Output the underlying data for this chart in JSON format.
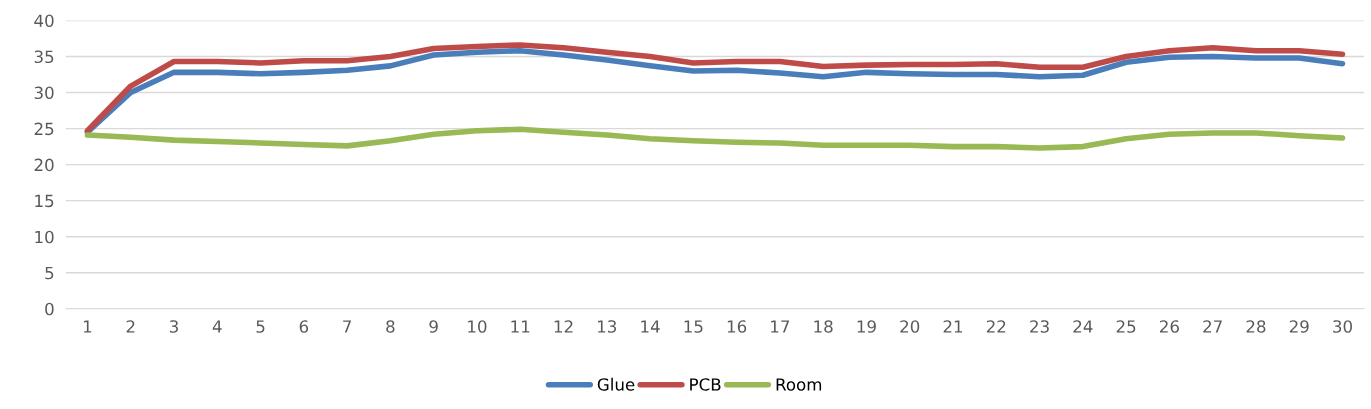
{
  "chart_data": {
    "type": "line",
    "categories": [
      "1",
      "2",
      "3",
      "4",
      "5",
      "6",
      "7",
      "8",
      "9",
      "10",
      "11",
      "12",
      "13",
      "14",
      "15",
      "16",
      "17",
      "18",
      "19",
      "20",
      "21",
      "22",
      "23",
      "24",
      "25",
      "26",
      "27",
      "28",
      "29",
      "30"
    ],
    "series": [
      {
        "name": "Glue",
        "color": "#4a7ebb",
        "values": [
          24.5,
          30,
          32.8,
          32.8,
          32.6,
          32.8,
          33.1,
          33.7,
          35.2,
          35.6,
          35.8,
          35.2,
          34.5,
          33.7,
          33.0,
          33.1,
          32.7,
          32.2,
          32.8,
          32.6,
          32.5,
          32.5,
          32.2,
          32.4,
          34.2,
          34.9,
          35.0,
          34.8,
          34.8,
          34.0
        ]
      },
      {
        "name": "PCB",
        "color": "#be4b48",
        "values": [
          24.7,
          30.9,
          34.3,
          34.3,
          34.1,
          34.4,
          34.4,
          35.0,
          36.1,
          36.4,
          36.6,
          36.2,
          35.6,
          35.0,
          34.1,
          34.3,
          34.3,
          33.6,
          33.8,
          33.9,
          33.9,
          34.0,
          33.5,
          33.5,
          35.0,
          35.8,
          36.2,
          35.8,
          35.8,
          35.3
        ]
      },
      {
        "name": "Room",
        "color": "#98b954",
        "values": [
          24.1,
          23.8,
          23.4,
          23.2,
          23.0,
          22.8,
          22.6,
          23.3,
          24.2,
          24.7,
          24.9,
          24.5,
          24.1,
          23.6,
          23.3,
          23.1,
          23.0,
          22.7,
          22.7,
          22.7,
          22.5,
          22.5,
          22.3,
          22.5,
          23.6,
          24.2,
          24.4,
          24.4,
          24.0,
          23.7
        ]
      }
    ],
    "ylim": [
      0,
      40
    ],
    "yticks": [
      0,
      5,
      10,
      15,
      20,
      25,
      30,
      35,
      40
    ],
    "grid": "y",
    "legend": "bottom",
    "marker": "none",
    "line_style": "solid"
  }
}
